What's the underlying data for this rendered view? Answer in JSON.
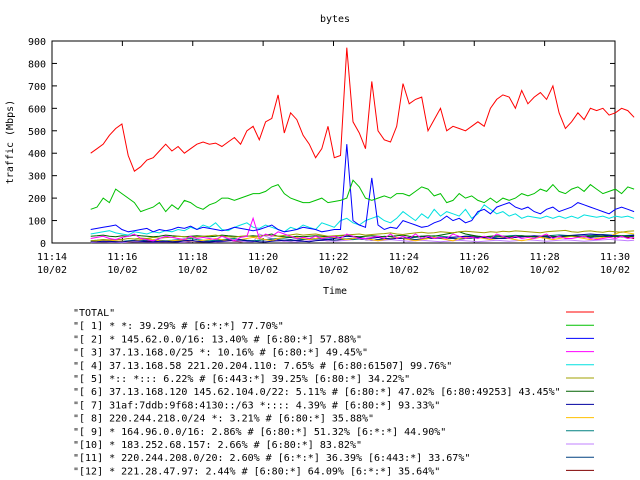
{
  "chart_data": {
    "type": "line",
    "title": "bytes",
    "xlabel": "Time",
    "ylabel": "traffic (Mbps)",
    "ylim": [
      0,
      900
    ],
    "y_ticks": [
      "0",
      "100",
      "200",
      "300",
      "400",
      "500",
      "600",
      "700",
      "800",
      "900"
    ],
    "xlim": [
      0,
      16
    ],
    "x_unit": "minutes after 11:14",
    "x_ticks": [
      {
        "value": 0,
        "line1": "11:14",
        "line2": "10/02"
      },
      {
        "value": 2,
        "line1": "11:16",
        "line2": "10/02"
      },
      {
        "value": 4,
        "line1": "11:18",
        "line2": "10/02"
      },
      {
        "value": 6,
        "line1": "11:20",
        "line2": "10/02"
      },
      {
        "value": 8,
        "line1": "11:22",
        "line2": "10/02"
      },
      {
        "value": 10,
        "line1": "11:24",
        "line2": "10/02"
      },
      {
        "value": 12,
        "line1": "11:26",
        "line2": "10/02"
      },
      {
        "value": 14,
        "line1": "11:28",
        "line2": "10/02"
      },
      {
        "value": 16,
        "line1": "11:30",
        "line2": "10/02"
      }
    ],
    "grid": false,
    "legend_position": "bottom",
    "series": [
      {
        "name": "\"TOTAL\"",
        "color": "#ff0000",
        "values": [
          400,
          420,
          440,
          480,
          510,
          530,
          390,
          320,
          340,
          370,
          380,
          410,
          440,
          410,
          430,
          400,
          420,
          440,
          450,
          440,
          445,
          430,
          450,
          470,
          440,
          500,
          520,
          460,
          540,
          555,
          660,
          490,
          580,
          550,
          480,
          440,
          380,
          420,
          520,
          380,
          390,
          870,
          540,
          490,
          420,
          720,
          500,
          460,
          450,
          520,
          710,
          620,
          640,
          650,
          500,
          550,
          600,
          500,
          520,
          510,
          500,
          520,
          540,
          520,
          600,
          640,
          660,
          650,
          600,
          680,
          620,
          650,
          670,
          640,
          700,
          580,
          510,
          540,
          580,
          550,
          600,
          590,
          600,
          570,
          580,
          600,
          590,
          560
        ],
        "step": 0.1775
      },
      {
        "name": "\"[ 1] * *: 39.29% # [6:*:*] 77.70%\"",
        "color": "#00c000",
        "values": [
          150,
          160,
          200,
          180,
          240,
          220,
          200,
          180,
          140,
          150,
          160,
          180,
          140,
          170,
          150,
          190,
          180,
          160,
          150,
          170,
          180,
          200,
          200,
          190,
          200,
          210,
          220,
          220,
          230,
          250,
          260,
          220,
          200,
          190,
          180,
          180,
          190,
          200,
          180,
          185,
          190,
          200,
          280,
          250,
          200,
          190,
          200,
          210,
          200,
          220,
          220,
          210,
          230,
          250,
          240,
          210,
          220,
          180,
          190,
          220,
          200,
          210,
          190,
          180,
          200,
          180,
          200,
          190,
          200,
          220,
          210,
          220,
          240,
          230,
          260,
          230,
          220,
          240,
          250,
          230,
          260,
          240,
          220,
          230,
          240,
          220,
          250,
          240
        ],
        "step": 0.1775
      },
      {
        "name": "\"[ 2] * 145.62.0.0/16: 13.40% # [6:80:*] 57.88%\"",
        "color": "#0000ff",
        "values": [
          60,
          65,
          70,
          75,
          80,
          60,
          50,
          55,
          60,
          65,
          50,
          60,
          55,
          60,
          70,
          65,
          75,
          60,
          70,
          65,
          60,
          55,
          60,
          70,
          65,
          60,
          55,
          60,
          70,
          80,
          60,
          50,
          55,
          60,
          70,
          65,
          60,
          50,
          55,
          60,
          60,
          440,
          100,
          80,
          70,
          290,
          80,
          60,
          70,
          65,
          100,
          90,
          80,
          70,
          75,
          90,
          100,
          120,
          100,
          110,
          90,
          100,
          140,
          150,
          130,
          160,
          170,
          180,
          160,
          150,
          160,
          140,
          130,
          150,
          160,
          140,
          150,
          160,
          180,
          170,
          160,
          150,
          140,
          130,
          150,
          160,
          150,
          140
        ],
        "step": 0.1775
      },
      {
        "name": "\"[ 3] 37.13.168.0/25 *: 10.16% # [6:80:*] 49.45%\"",
        "color": "#ff00ff",
        "values": [
          20,
          25,
          30,
          20,
          15,
          25,
          30,
          40,
          20,
          15,
          10,
          20,
          30,
          25,
          20,
          15,
          30,
          20,
          25,
          20,
          15,
          30,
          20,
          10,
          25,
          30,
          110,
          20,
          40,
          30,
          50,
          40,
          30,
          20,
          25,
          20,
          30,
          20,
          25,
          30,
          20,
          40,
          30,
          20,
          20,
          25,
          30,
          20,
          40,
          20,
          30,
          20,
          40,
          20,
          30,
          20,
          25,
          20,
          40,
          30,
          20,
          25,
          20,
          30,
          20,
          40,
          30,
          20,
          30,
          20,
          25,
          20,
          30,
          40,
          20,
          30,
          20,
          20,
          25,
          30,
          20,
          15,
          20,
          25,
          20,
          30,
          20,
          25
        ],
        "step": 0.1775
      },
      {
        "name": "\"[ 4] 37.13.168.58 221.20.204.110: 7.65% # [6:80:61507] 99.76%\"",
        "color": "#00e0e0",
        "values": [
          40,
          45,
          50,
          55,
          45,
          40,
          35,
          50,
          45,
          40,
          50,
          45,
          55,
          50,
          60,
          55,
          70,
          60,
          80,
          70,
          90,
          60,
          55,
          70,
          80,
          90,
          70,
          65,
          80,
          70,
          60,
          50,
          70,
          60,
          80,
          70,
          60,
          90,
          80,
          70,
          100,
          110,
          90,
          80,
          100,
          110,
          120,
          100,
          90,
          110,
          140,
          120,
          100,
          130,
          110,
          150,
          120,
          140,
          130,
          120,
          150,
          110,
          130,
          170,
          150,
          130,
          140,
          120,
          130,
          110,
          120,
          115,
          110,
          120,
          110,
          120,
          110,
          120,
          110,
          125,
          120,
          115,
          120,
          110,
          120,
          115,
          120,
          110
        ],
        "step": 0.1775
      },
      {
        "name": "\"[ 5] *:: *::: 6.22% # [6:443:*] 39.25% [6:80:*] 34.22%\"",
        "color": "#a0a000",
        "values": [
          10,
          12,
          15,
          14,
          16,
          15,
          20,
          18,
          22,
          20,
          25,
          22,
          24,
          26,
          30,
          28,
          25,
          27,
          30,
          32,
          35,
          30,
          28,
          26,
          30,
          32,
          28,
          30,
          35,
          32,
          30,
          34,
          36,
          40,
          35,
          38,
          40,
          35,
          30,
          32,
          34,
          36,
          38,
          40,
          35,
          38,
          40,
          42,
          45,
          40,
          38,
          42,
          45,
          48,
          44,
          46,
          50,
          48,
          46,
          50,
          52,
          50,
          48,
          46,
          50,
          48,
          52,
          50,
          54,
          52,
          50,
          48,
          46,
          50,
          52,
          54,
          56,
          50,
          48,
          52,
          54,
          50,
          48,
          52,
          50,
          48,
          52,
          54
        ],
        "step": 0.1775
      },
      {
        "name": "\"[ 6] 37.13.168.120 145.62.104.0/22: 5.11% # [6:80:*] 47.02% [6:80:49253] 43.45%\"",
        "color": "#006000",
        "values": [
          30,
          32,
          35,
          30,
          28,
          32,
          30,
          35,
          32,
          30,
          28,
          30,
          35,
          32,
          30,
          28,
          30,
          32,
          30,
          28,
          30,
          35,
          32,
          30,
          28,
          30,
          32,
          30,
          35,
          40,
          30,
          28,
          25,
          30,
          28,
          30,
          32,
          30,
          28,
          30,
          32,
          35,
          30,
          28,
          30,
          32,
          30,
          28,
          30,
          32,
          35,
          30,
          28,
          30,
          32,
          30,
          35,
          40,
          45,
          50,
          40,
          35,
          30,
          28,
          30,
          32,
          30,
          28,
          30,
          32,
          30,
          28,
          30,
          32,
          30,
          28,
          30,
          32,
          30,
          28,
          30,
          32,
          30,
          28,
          30,
          32,
          30,
          28
        ],
        "step": 0.1775
      },
      {
        "name": "\"[ 7] 31af:7ddb:9f68:4130::/63 *:::: 4.39% # [6:80:*] 93.33%\"",
        "color": "#0000a0",
        "values": [
          5,
          6,
          8,
          7,
          6,
          5,
          8,
          10,
          8,
          6,
          5,
          7,
          8,
          6,
          5,
          10,
          12,
          8,
          6,
          5,
          7,
          8,
          10,
          12,
          15,
          10,
          8,
          6,
          5,
          8,
          10,
          12,
          15,
          10,
          8,
          6,
          10,
          12,
          15,
          20,
          25,
          30,
          28,
          25,
          20,
          22,
          25,
          20,
          18,
          20,
          22,
          25,
          28,
          30,
          25,
          20,
          22,
          24,
          26,
          28,
          30,
          28,
          26,
          24,
          22,
          20,
          22,
          24,
          26,
          28,
          30,
          32,
          30,
          28,
          26,
          30,
          32,
          34,
          36,
          38,
          40,
          38,
          36,
          34,
          32,
          30,
          32,
          34
        ],
        "step": 0.1775
      },
      {
        "name": "\"[ 8] 220.244.218.0/24 *: 3.21% # [6:80:*] 35.88%\"",
        "color": "#ffc000",
        "values": [
          5,
          8,
          10,
          12,
          10,
          8,
          6,
          10,
          15,
          20,
          15,
          10,
          8,
          10,
          12,
          15,
          10,
          8,
          12,
          15,
          20,
          15,
          10,
          12,
          15,
          20,
          25,
          20,
          15,
          10,
          20,
          25,
          30,
          25,
          20,
          15,
          20,
          25,
          30,
          25,
          20,
          15,
          20,
          25,
          20,
          15,
          10,
          15,
          20,
          25,
          20,
          15,
          10,
          15,
          20,
          25,
          20,
          15,
          10,
          20,
          25,
          30,
          25,
          20,
          15,
          20,
          25,
          20,
          15,
          10,
          15,
          20,
          25,
          20,
          15,
          20,
          25,
          30,
          25,
          20,
          15,
          20,
          25,
          30,
          40,
          50,
          45,
          40
        ],
        "step": 0.1775
      },
      {
        "name": "\"[ 9] * 164.96.0.0/16: 2.86% # [6:80:*] 51.32% [6:*:*] 44.90%\"",
        "color": "#008080",
        "values": [
          10,
          12,
          15,
          12,
          10,
          8,
          10,
          12,
          15,
          18,
          15,
          12,
          10,
          12,
          15,
          18,
          20,
          15,
          12,
          10,
          12,
          15,
          18,
          20,
          15,
          12,
          10,
          12,
          15,
          18,
          20,
          22,
          25,
          20,
          18,
          15,
          18,
          20,
          22,
          25,
          20,
          18,
          15,
          18,
          20,
          22,
          25,
          30,
          28,
          25,
          20,
          22,
          25,
          28,
          30,
          32,
          30,
          28,
          25,
          28,
          30,
          32,
          30,
          28,
          25,
          28,
          30,
          32,
          34,
          32,
          30,
          28,
          30,
          32,
          34,
          36,
          34,
          32,
          30,
          32,
          34,
          36,
          38,
          36,
          34,
          32,
          34,
          36
        ],
        "step": 0.1775
      },
      {
        "name": "\"[10] * 183.252.68.157: 2.66% # [6:80:*] 83.82%\"",
        "color": "#c080ff",
        "values": [
          2,
          3,
          5,
          4,
          3,
          2,
          4,
          6,
          5,
          4,
          3,
          5,
          6,
          5,
          4,
          3,
          5,
          8,
          6,
          5,
          4,
          6,
          8,
          10,
          8,
          6,
          5,
          40,
          30,
          20,
          10,
          8,
          6,
          5,
          8,
          10,
          15,
          12,
          10,
          8,
          10,
          12,
          15,
          20,
          15,
          12,
          10,
          12,
          15,
          12,
          10,
          8,
          10,
          12,
          10,
          8,
          6,
          8,
          10,
          12,
          10,
          8,
          6,
          8,
          10,
          12,
          10,
          8,
          10,
          12,
          14,
          12,
          10,
          8,
          10,
          12,
          14,
          12,
          10,
          8,
          10,
          12,
          14,
          16,
          14,
          12,
          10,
          12
        ],
        "step": 0.1775
      },
      {
        "name": "\"[11] * 220.244.208.0/20: 2.60% # [6:*:*] 36.39% [6:443:*] 33.67%\"",
        "color": "#004080",
        "values": [
          5,
          6,
          8,
          10,
          8,
          6,
          5,
          8,
          10,
          12,
          10,
          8,
          6,
          8,
          10,
          12,
          10,
          8,
          6,
          8,
          10,
          12,
          15,
          12,
          10,
          8,
          10,
          12,
          15,
          18,
          15,
          12,
          10,
          12,
          15,
          18,
          20,
          18,
          15,
          12,
          15,
          18,
          20,
          18,
          15,
          12,
          15,
          18,
          20,
          22,
          20,
          18,
          15,
          18,
          20,
          22,
          25,
          22,
          20,
          18,
          20,
          22,
          25,
          28,
          25,
          22,
          20,
          22,
          25,
          28,
          30,
          28,
          25,
          22,
          25,
          28,
          30,
          32,
          30,
          28,
          25,
          28,
          30,
          32,
          30,
          28,
          30,
          32
        ],
        "step": 0.1775
      },
      {
        "name": "\"[12] * 221.28.47.97: 2.44% # [6:80:*] 64.09% [6:*:*] 35.64%\"",
        "color": "#800000",
        "values": [
          3,
          4,
          5,
          6,
          5,
          4,
          3,
          5,
          6,
          8,
          6,
          5,
          4,
          6,
          8,
          10,
          8,
          6,
          5,
          8,
          10,
          12,
          10,
          8,
          6,
          8,
          10,
          12,
          15,
          12,
          10,
          8,
          10,
          12,
          15,
          18,
          15,
          12,
          10,
          12,
          15,
          18,
          20,
          18,
          15,
          12,
          15,
          18,
          20,
          22,
          20,
          18,
          15,
          18,
          20,
          22,
          25,
          22,
          20,
          18,
          20,
          22,
          25,
          28,
          25,
          22,
          20,
          22,
          25,
          28,
          30,
          28,
          25,
          22,
          25,
          28,
          30,
          32,
          30,
          28,
          25,
          28,
          30,
          32,
          30,
          28,
          25,
          20
        ],
        "step": 0.1775
      }
    ]
  }
}
